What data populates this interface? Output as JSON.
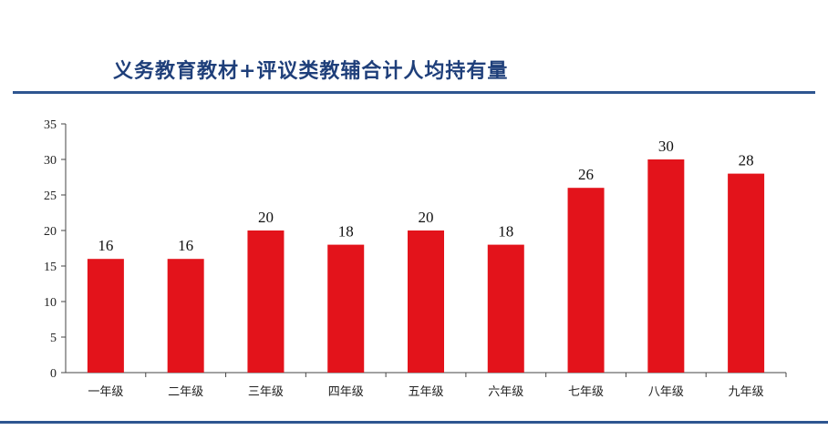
{
  "title": "义务教育教材+评议类教辅合计人均持有量",
  "colors": {
    "bar": "#e3131b",
    "rule": "#2e5590",
    "title": "#1f3f7a"
  },
  "chart_data": {
    "type": "bar",
    "title": "义务教育教材+评议类教辅合计人均持有量",
    "xlabel": "",
    "ylabel": "",
    "ylim": [
      0,
      35
    ],
    "yticks": [
      0,
      5,
      10,
      15,
      20,
      25,
      30,
      35
    ],
    "grid": false,
    "legend": "none",
    "categories": [
      "一年级",
      "二年级",
      "三年级",
      "四年级",
      "五年级",
      "六年级",
      "七年级",
      "八年级",
      "九年级"
    ],
    "values": [
      16,
      16,
      20,
      18,
      20,
      18,
      26,
      30,
      28
    ],
    "data_labels": [
      "16",
      "16",
      "20",
      "18",
      "20",
      "18",
      "26",
      "30",
      "28"
    ]
  }
}
